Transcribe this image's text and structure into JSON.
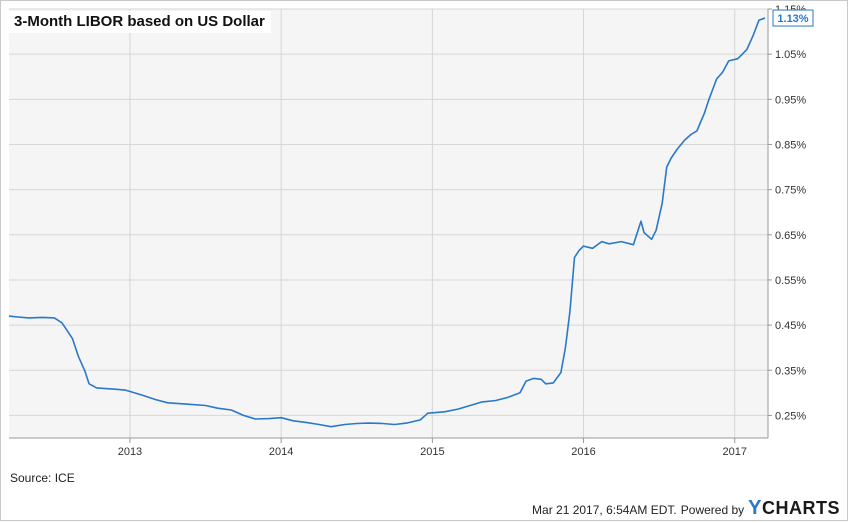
{
  "header": {
    "title": "3-Month LIBOR based on US Dollar"
  },
  "source": "Source: ICE",
  "footer": {
    "timestamp": "Mar 21 2017, 6:54AM EDT.",
    "powered_by": "Powered by",
    "logo_y": "Y",
    "logo_rest": "CHARTS"
  },
  "colors": {
    "line": "#2a78c8",
    "plot_bg": "#f5f5f5",
    "grid": "#d6d6d6"
  },
  "chart_data": {
    "type": "line",
    "title": "3-Month LIBOR based on US Dollar",
    "xlabel": "",
    "ylabel": "",
    "y_ticks": [
      0.25,
      0.35,
      0.45,
      0.55,
      0.65,
      0.75,
      0.85,
      0.95,
      1.05,
      1.15
    ],
    "y_tick_labels": [
      "0.25%",
      "0.35%",
      "0.45%",
      "0.55%",
      "0.65%",
      "0.75%",
      "0.85%",
      "0.95%",
      "1.05%",
      "1.15%"
    ],
    "ylim": [
      0.2,
      1.15
    ],
    "x_ticks": [
      2013,
      2014,
      2015,
      2016,
      2017
    ],
    "x_tick_labels": [
      "2013",
      "2014",
      "2015",
      "2016",
      "2017"
    ],
    "xlim": [
      2012.2,
      2017.22
    ],
    "grid": true,
    "last_value_label": "1.13%",
    "series": [
      {
        "values": [
          [
            2012.2,
            0.47
          ],
          [
            2012.26,
            0.468
          ],
          [
            2012.33,
            0.466
          ],
          [
            2012.42,
            0.467
          ],
          [
            2012.5,
            0.466
          ],
          [
            2012.55,
            0.455
          ],
          [
            2012.58,
            0.44
          ],
          [
            2012.62,
            0.42
          ],
          [
            2012.66,
            0.38
          ],
          [
            2012.7,
            0.35
          ],
          [
            2012.73,
            0.32
          ],
          [
            2012.78,
            0.311
          ],
          [
            2012.9,
            0.308
          ],
          [
            2012.97,
            0.306
          ],
          [
            2013.08,
            0.295
          ],
          [
            2013.17,
            0.285
          ],
          [
            2013.25,
            0.278
          ],
          [
            2013.37,
            0.275
          ],
          [
            2013.5,
            0.272
          ],
          [
            2013.58,
            0.266
          ],
          [
            2013.67,
            0.262
          ],
          [
            2013.75,
            0.25
          ],
          [
            2013.83,
            0.242
          ],
          [
            2013.92,
            0.243
          ],
          [
            2014.0,
            0.245
          ],
          [
            2014.08,
            0.238
          ],
          [
            2014.17,
            0.234
          ],
          [
            2014.25,
            0.23
          ],
          [
            2014.33,
            0.225
          ],
          [
            2014.42,
            0.23
          ],
          [
            2014.5,
            0.232
          ],
          [
            2014.58,
            0.233
          ],
          [
            2014.67,
            0.232
          ],
          [
            2014.75,
            0.23
          ],
          [
            2014.83,
            0.233
          ],
          [
            2014.92,
            0.24
          ],
          [
            2014.97,
            0.255
          ],
          [
            2015.08,
            0.258
          ],
          [
            2015.17,
            0.264
          ],
          [
            2015.25,
            0.272
          ],
          [
            2015.33,
            0.28
          ],
          [
            2015.42,
            0.283
          ],
          [
            2015.5,
            0.29
          ],
          [
            2015.58,
            0.3
          ],
          [
            2015.62,
            0.326
          ],
          [
            2015.67,
            0.332
          ],
          [
            2015.72,
            0.33
          ],
          [
            2015.75,
            0.32
          ],
          [
            2015.8,
            0.322
          ],
          [
            2015.85,
            0.345
          ],
          [
            2015.88,
            0.4
          ],
          [
            2015.91,
            0.48
          ],
          [
            2015.94,
            0.6
          ],
          [
            2015.97,
            0.615
          ],
          [
            2016.0,
            0.625
          ],
          [
            2016.06,
            0.62
          ],
          [
            2016.12,
            0.635
          ],
          [
            2016.17,
            0.63
          ],
          [
            2016.25,
            0.635
          ],
          [
            2016.33,
            0.628
          ],
          [
            2016.38,
            0.68
          ],
          [
            2016.4,
            0.655
          ],
          [
            2016.45,
            0.64
          ],
          [
            2016.48,
            0.66
          ],
          [
            2016.52,
            0.72
          ],
          [
            2016.55,
            0.8
          ],
          [
            2016.58,
            0.82
          ],
          [
            2016.62,
            0.84
          ],
          [
            2016.67,
            0.86
          ],
          [
            2016.71,
            0.872
          ],
          [
            2016.75,
            0.88
          ],
          [
            2016.8,
            0.92
          ],
          [
            2016.83,
            0.95
          ],
          [
            2016.88,
            0.995
          ],
          [
            2016.92,
            1.01
          ],
          [
            2016.96,
            1.035
          ],
          [
            2017.02,
            1.04
          ],
          [
            2017.08,
            1.06
          ],
          [
            2017.12,
            1.09
          ],
          [
            2017.16,
            1.125
          ],
          [
            2017.2,
            1.13
          ]
        ]
      }
    ]
  }
}
